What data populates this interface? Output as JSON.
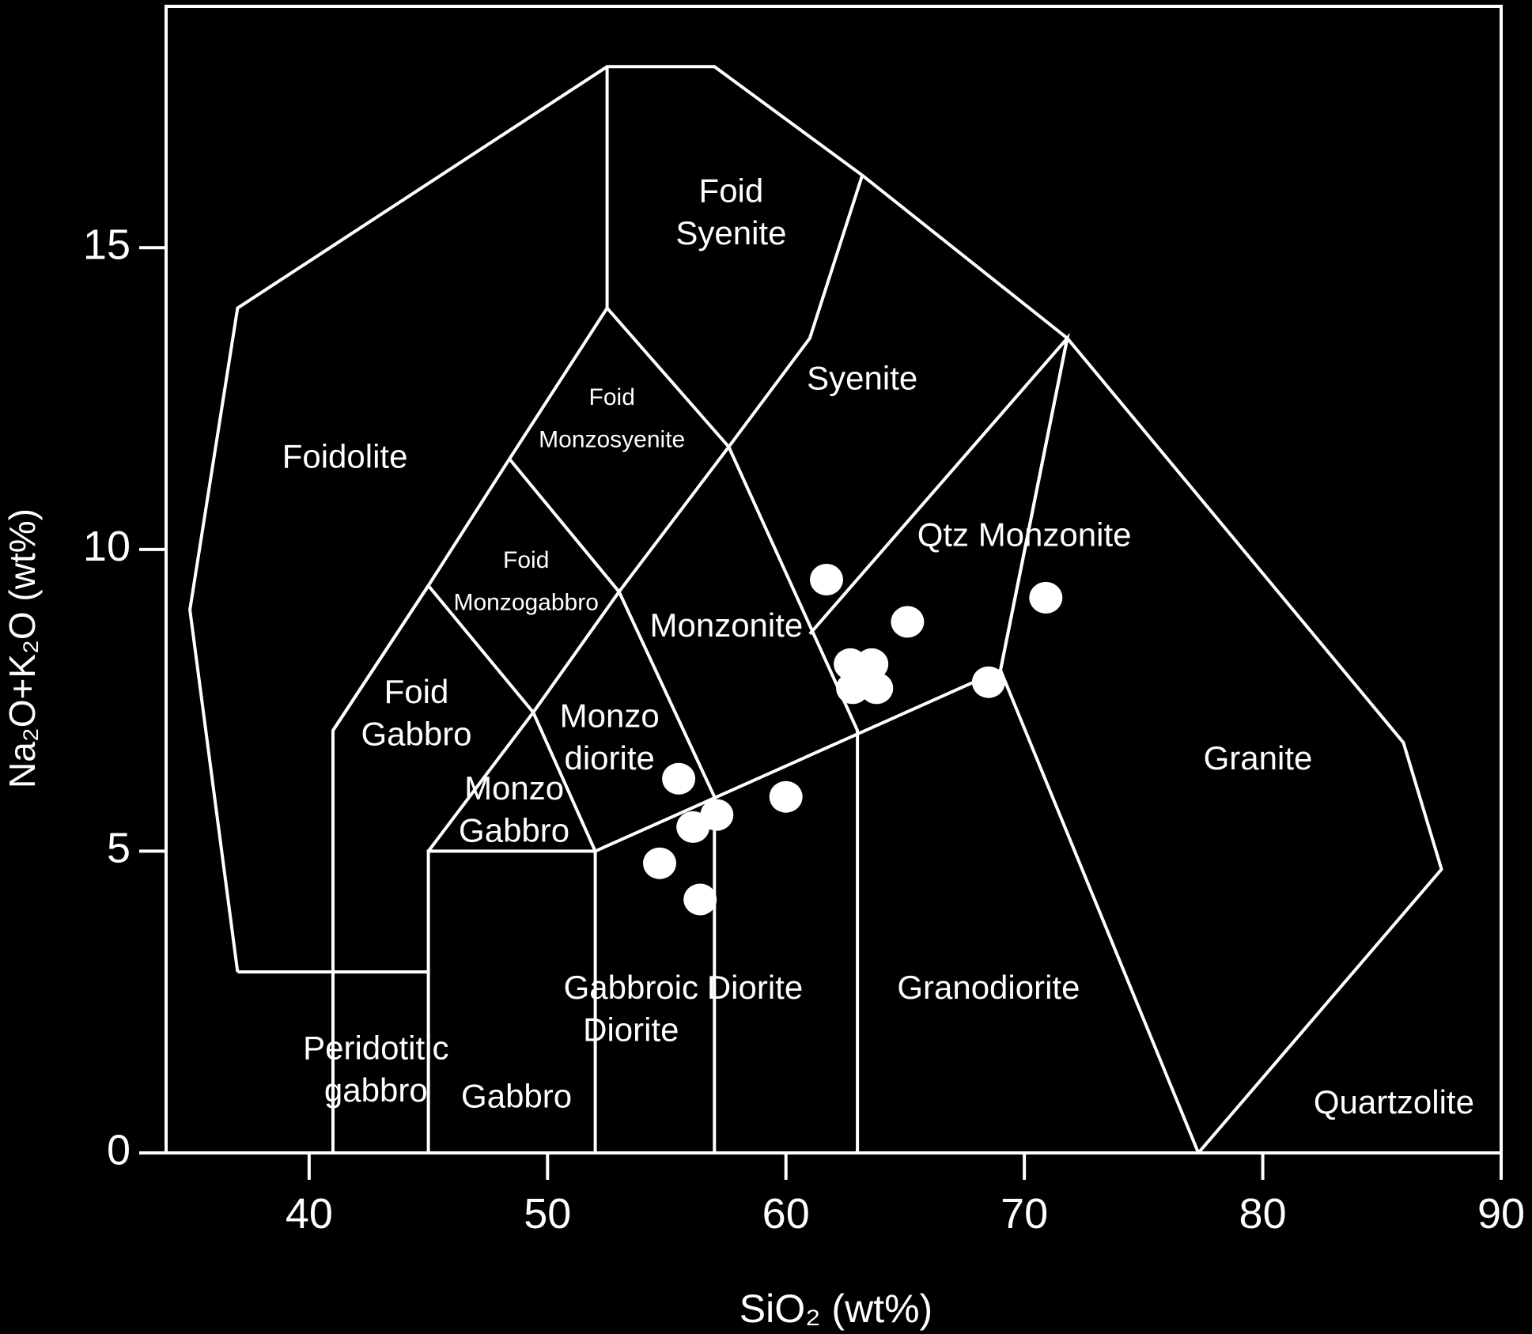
{
  "chart_data": {
    "type": "scatter",
    "xlabel": "SiO₂ (wt%)",
    "ylabel": "Na₂O+K₂O (wt%)",
    "xlim": [
      34,
      90
    ],
    "ylim": [
      0,
      19
    ],
    "x_ticks": [
      "40",
      "50",
      "60",
      "70",
      "80",
      "90"
    ],
    "y_ticks": [
      "0",
      "5",
      "10",
      "15"
    ],
    "grid": false,
    "legend": "none",
    "colors": {
      "background": "#000000",
      "lines": "#ffffff",
      "points": "#ffffff"
    },
    "boundaries": [
      [
        [
          37,
          3
        ],
        [
          35,
          9
        ],
        [
          37,
          14
        ],
        [
          52.5,
          18
        ],
        [
          57,
          18
        ],
        [
          63.2,
          16.2
        ],
        [
          71.8,
          13.5
        ],
        [
          85.9,
          6.8
        ],
        [
          87.5,
          4.7
        ],
        [
          77.3,
          0
        ]
      ],
      [
        [
          37,
          3
        ],
        [
          45,
          3
        ]
      ],
      [
        [
          41,
          0
        ],
        [
          41,
          7
        ],
        [
          45,
          9.4
        ],
        [
          48.4,
          11.5
        ],
        [
          52.5,
          14
        ],
        [
          52.5,
          18
        ]
      ],
      [
        [
          45,
          0
        ],
        [
          45,
          5
        ],
        [
          52,
          5
        ],
        [
          69,
          8
        ],
        [
          71.8,
          13.5
        ]
      ],
      [
        [
          52,
          0
        ],
        [
          52,
          5
        ]
      ],
      [
        [
          57,
          0
        ],
        [
          57,
          5.9
        ]
      ],
      [
        [
          63,
          0
        ],
        [
          63,
          7
        ],
        [
          57.6,
          11.7
        ],
        [
          52.5,
          14
        ]
      ],
      [
        [
          45,
          9.4
        ],
        [
          49.4,
          7.3
        ],
        [
          52,
          5
        ]
      ],
      [
        [
          48.4,
          11.5
        ],
        [
          53,
          9.3
        ],
        [
          57,
          5.9
        ]
      ],
      [
        [
          41,
          7
        ],
        [
          45,
          9.4
        ]
      ],
      [
        [
          45,
          5
        ],
        [
          49.4,
          7.3
        ],
        [
          53,
          9.3
        ],
        [
          57.6,
          11.7
        ],
        [
          61,
          13.5
        ],
        [
          63.2,
          16.2
        ]
      ],
      [
        [
          61,
          8.6
        ],
        [
          71.8,
          13.5
        ],
        [
          69,
          8
        ],
        [
          77.3,
          0
        ]
      ]
    ],
    "field_labels": [
      {
        "text": "Foid",
        "x": 57.7,
        "y": 15.9
      },
      {
        "text": "Syenite",
        "x": 57.7,
        "y": 15.2
      },
      {
        "text": "Syenite",
        "x": 63.2,
        "y": 12.8
      },
      {
        "text": "Foid",
        "x": 52.7,
        "y": 12.5
      },
      {
        "text": "Monzosyenite",
        "x": 52.7,
        "y": 11.8
      },
      {
        "text": "Foidolite",
        "x": 41.5,
        "y": 11.5
      },
      {
        "text": "Qtz Monzonite",
        "x": 70,
        "y": 10.2
      },
      {
        "text": "Foid",
        "x": 49.1,
        "y": 9.8
      },
      {
        "text": "Monzogabbro",
        "x": 49.1,
        "y": 9.1
      },
      {
        "text": "Monzonite",
        "x": 57.5,
        "y": 8.7
      },
      {
        "text": "Foid",
        "x": 44.5,
        "y": 7.6
      },
      {
        "text": "Gabbro",
        "x": 44.5,
        "y": 6.9
      },
      {
        "text": "Monzo",
        "x": 52.6,
        "y": 7.2
      },
      {
        "text": "diorite",
        "x": 52.6,
        "y": 6.5
      },
      {
        "text": "Monzo",
        "x": 48.6,
        "y": 6
      },
      {
        "text": "Gabbro",
        "x": 48.6,
        "y": 5.3
      },
      {
        "text": "Granite",
        "x": 79.8,
        "y": 6.5
      },
      {
        "text": "Gabbroic",
        "x": 53.5,
        "y": 2.7
      },
      {
        "text": "Diorite",
        "x": 53.5,
        "y": 2
      },
      {
        "text": "Diorite",
        "x": 58.7,
        "y": 2.7
      },
      {
        "text": "Granodiorite",
        "x": 68.5,
        "y": 2.7
      },
      {
        "text": "Peridotitic",
        "x": 42.8,
        "y": 1.7
      },
      {
        "text": "gabbro",
        "x": 42.8,
        "y": 1
      },
      {
        "text": "Gabbro",
        "x": 48.7,
        "y": 0.9
      },
      {
        "text": "Quartzolite",
        "x": 85.5,
        "y": 0.8
      }
    ],
    "points": [
      {
        "x": 61.7,
        "y": 9.5
      },
      {
        "x": 65.1,
        "y": 8.8
      },
      {
        "x": 70.9,
        "y": 9.2
      },
      {
        "x": 62.7,
        "y": 8.1
      },
      {
        "x": 63.6,
        "y": 8.1
      },
      {
        "x": 62.8,
        "y": 7.7
      },
      {
        "x": 63.8,
        "y": 7.7
      },
      {
        "x": 68.5,
        "y": 7.8
      },
      {
        "x": 55.5,
        "y": 6.2
      },
      {
        "x": 60,
        "y": 5.9
      },
      {
        "x": 57.1,
        "y": 5.6
      },
      {
        "x": 56.1,
        "y": 5.4
      },
      {
        "x": 54.7,
        "y": 4.8
      },
      {
        "x": 56.4,
        "y": 4.2
      }
    ]
  }
}
